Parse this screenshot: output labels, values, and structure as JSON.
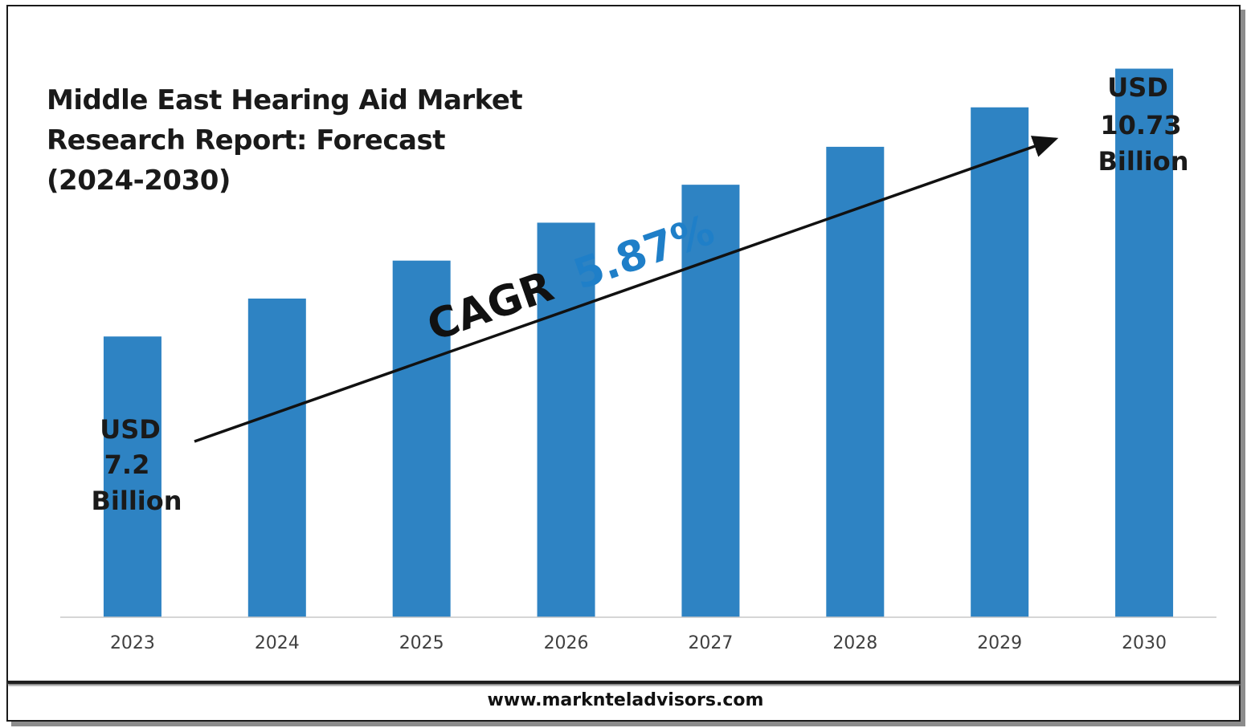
{
  "title": "Middle East Hearing Aid Market\nResearch Report: Forecast\n(2024-2030)",
  "cagr": {
    "label": "CAGR",
    "value": "5.87%"
  },
  "start_label": {
    "line1": "USD",
    "line2": "7.2",
    "line3": "Billion"
  },
  "end_label": {
    "line1": "USD",
    "line2": "10.73",
    "line3": "Billion"
  },
  "footer": "www.marknteladvisors.com",
  "colors": {
    "bar": "#2e83c3",
    "cagr_value": "#1f7fc8",
    "text": "#1a1a1a",
    "axis_label": "#404040"
  },
  "chart_data": {
    "type": "bar",
    "categories": [
      "2023",
      "2024",
      "2025",
      "2026",
      "2027",
      "2028",
      "2029",
      "2030"
    ],
    "values": [
      7.2,
      7.7,
      8.2,
      8.7,
      9.2,
      9.7,
      10.22,
      10.73
    ],
    "ylim": [
      3.5,
      11.0
    ],
    "grid": false,
    "title": "Middle East Hearing Aid Market Research Report: Forecast (2024-2030)"
  }
}
